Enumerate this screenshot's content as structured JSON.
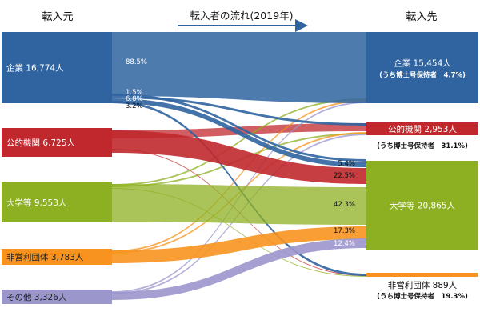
{
  "header": {
    "source_title": "転入元",
    "flow_title": "転入者の流れ(2019年)",
    "dest_title": "転入先"
  },
  "sources": [
    {
      "id": "company",
      "label": "企業 16,774人",
      "color": "#2f64a0",
      "text_color": "#ffffff"
    },
    {
      "id": "public",
      "label": "公的機関 6,725人",
      "color": "#c0282e",
      "text_color": "#ffffff"
    },
    {
      "id": "university",
      "label": "大学等 9,553人",
      "color": "#8db022",
      "text_color": "#ffffff"
    },
    {
      "id": "nonprofit",
      "label": "非営利団体 3,783人",
      "color": "#f7931e",
      "text_color": "#222222"
    },
    {
      "id": "other",
      "label": "その他 3,326人",
      "color": "#9b96cc",
      "text_color": "#222222"
    }
  ],
  "destinations": [
    {
      "id": "company",
      "label": "企業 15,454人",
      "sublabel": "(うち博士号保持者　4.7%)",
      "color": "#2f64a0",
      "text_color": "#ffffff"
    },
    {
      "id": "public",
      "label": "公的機関 2,953人",
      "sublabel": "(うち博士号保持者　31.1%)",
      "color": "#c0282e",
      "text_color": "#ffffff"
    },
    {
      "id": "university",
      "label": "大学等 20,865人",
      "sublabel": "",
      "color": "#8db022",
      "text_color": "#ffffff"
    },
    {
      "id": "nonprofit",
      "label": "非営利団体 889人",
      "sublabel": "(うち博士号保持者　19.3%)",
      "color": "#f7931e",
      "text_color": "#222222"
    }
  ],
  "flows": [
    {
      "from": "company",
      "to": "company",
      "label": "88.5%",
      "label_side": "source"
    },
    {
      "from": "company",
      "to": "public",
      "label": "1.5%",
      "label_side": "source"
    },
    {
      "from": "company",
      "to": "university",
      "label": "6.8%",
      "label_side": "source"
    },
    {
      "from": "company",
      "to": "nonprofit",
      "label": "3.2%",
      "label_side": "source"
    },
    {
      "from": "company",
      "to": "university",
      "label": "5.4%",
      "label_side": "dest"
    },
    {
      "from": "public",
      "to": "university",
      "label": "22.5%",
      "label_side": "dest"
    },
    {
      "from": "university",
      "to": "university",
      "label": "42.3%",
      "label_side": "dest"
    },
    {
      "from": "nonprofit",
      "to": "university",
      "label": "17.3%",
      "label_side": "dest"
    },
    {
      "from": "other",
      "to": "university",
      "label": "12.4%",
      "label_side": "dest"
    }
  ]
}
